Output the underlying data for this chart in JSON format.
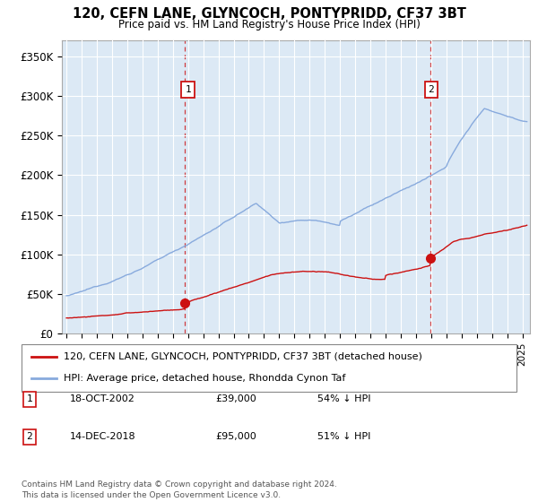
{
  "title": "120, CEFN LANE, GLYNCOCH, PONTYPRIDD, CF37 3BT",
  "subtitle": "Price paid vs. HM Land Registry's House Price Index (HPI)",
  "xlim_start": 1994.7,
  "xlim_end": 2025.5,
  "ylim": [
    0,
    370000
  ],
  "yticks": [
    0,
    50000,
    100000,
    150000,
    200000,
    250000,
    300000,
    350000
  ],
  "ytick_labels": [
    "£0",
    "£50K",
    "£100K",
    "£150K",
    "£200K",
    "£250K",
    "£300K",
    "£350K"
  ],
  "bg_color": "#dce9f5",
  "grid_color": "#ffffff",
  "hpi_color": "#88aadd",
  "price_color": "#cc1111",
  "ann1_x": 2003.0,
  "ann2_x": 2019.0,
  "ann_y": 308000,
  "dot1_x": 2002.8,
  "dot1_y": 39000,
  "dot2_x": 2018.95,
  "dot2_y": 95000,
  "legend_house": "120, CEFN LANE, GLYNCOCH, PONTYPRIDD, CF37 3BT (detached house)",
  "legend_hpi": "HPI: Average price, detached house, Rhondda Cynon Taf",
  "table_rows": [
    {
      "num": "1",
      "date": "18-OCT-2002",
      "price": "£39,000",
      "hpi": "54% ↓ HPI"
    },
    {
      "num": "2",
      "date": "14-DEC-2018",
      "price": "£95,000",
      "hpi": "51% ↓ HPI"
    }
  ],
  "footnote": "Contains HM Land Registry data © Crown copyright and database right 2024.\nThis data is licensed under the Open Government Licence v3.0."
}
